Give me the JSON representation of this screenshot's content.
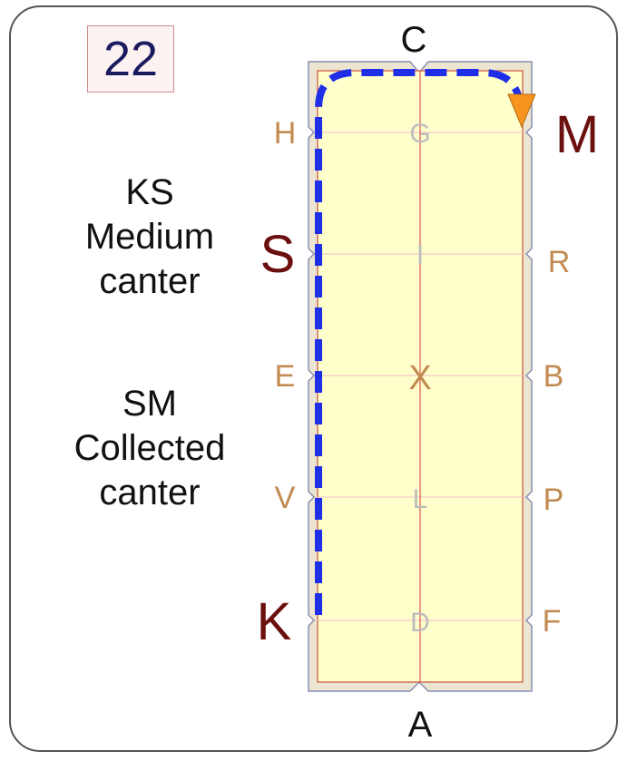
{
  "card_number": "22",
  "exercises": [
    {
      "lines": [
        "KS",
        "Medium",
        "canter"
      ]
    },
    {
      "lines": [
        "SM",
        "Collected",
        "canter"
      ]
    }
  ],
  "arena": {
    "end_letters": {
      "top": "C",
      "bottom": "A"
    },
    "left_letters": [
      "H",
      "E",
      "V"
    ],
    "right_letters": [
      "R",
      "B",
      "P",
      "F"
    ],
    "centerline_letters": [
      "G",
      "I",
      "X",
      "L",
      "D"
    ],
    "highlight_letters": {
      "M": "M",
      "S": "S",
      "K": "K"
    }
  },
  "colors": {
    "arena_fill": "#ffffcc",
    "arena_border": "#e9e0c9",
    "route": "#1f2fe8",
    "marker": "#f7941d",
    "letters": "#c08a50",
    "highlight": "#6b0f0f"
  }
}
